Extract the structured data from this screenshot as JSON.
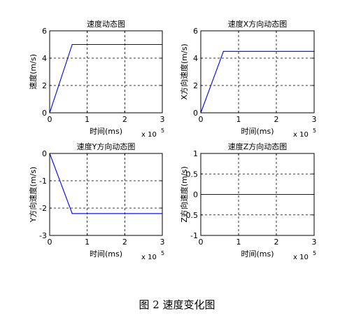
{
  "caption": "图 2  速度变化图",
  "chart_data": [
    {
      "type": "line",
      "title": "速度动态图",
      "xlabel": "时间(ms)",
      "ylabel": "速度(m/s)",
      "x_multiplier": "x 10",
      "x_exponent": "5",
      "xlim": [
        0,
        3
      ],
      "ylim": [
        0,
        6
      ],
      "xticks": [
        0,
        1,
        2,
        3
      ],
      "yticks": [
        0,
        2,
        4,
        6
      ],
      "grid": true,
      "line_color": "#0000ff",
      "series": [
        {
          "x": [
            0,
            0.6,
            3
          ],
          "y": [
            0,
            5.0,
            5.0
          ]
        }
      ]
    },
    {
      "type": "line",
      "title": "速度X方向动态图",
      "xlabel": "时间(ms)",
      "ylabel": "X方向速度(m/s)",
      "x_multiplier": "x 10",
      "x_exponent": "5",
      "xlim": [
        0,
        3
      ],
      "ylim": [
        0,
        6
      ],
      "xticks": [
        0,
        1,
        2,
        3
      ],
      "yticks": [
        0,
        2,
        4,
        6
      ],
      "grid": true,
      "line_color": "#0000ff",
      "series": [
        {
          "x": [
            0,
            0.6,
            3
          ],
          "y": [
            0,
            4.5,
            4.5
          ]
        }
      ]
    },
    {
      "type": "line",
      "title": "速度Y方向动态图",
      "xlabel": "时间(ms)",
      "ylabel": "Y方向速度(m/s)",
      "x_multiplier": "x 10",
      "x_exponent": "5",
      "xlim": [
        0,
        3
      ],
      "ylim": [
        -3,
        0
      ],
      "xticks": [
        0,
        1,
        2,
        3
      ],
      "yticks": [
        -3,
        -2,
        -1,
        0
      ],
      "grid": true,
      "line_color": "#0000ff",
      "series": [
        {
          "x": [
            0,
            0.6,
            3
          ],
          "y": [
            0,
            -2.2,
            -2.2
          ]
        }
      ]
    },
    {
      "type": "line",
      "title": "速度Z方向动态图",
      "xlabel": "时间(ms)",
      "ylabel": "Z方向速度(m/s)",
      "x_multiplier": "x 10",
      "x_exponent": "5",
      "xlim": [
        0,
        3
      ],
      "ylim": [
        -1,
        1
      ],
      "xticks": [
        0,
        1,
        2,
        3
      ],
      "yticks": [
        -1,
        -0.5,
        0,
        0.5,
        1
      ],
      "grid": true,
      "line_color": "#0000ff",
      "series": [
        {
          "x": [
            0,
            3
          ],
          "y": [
            0,
            0
          ]
        }
      ]
    }
  ]
}
